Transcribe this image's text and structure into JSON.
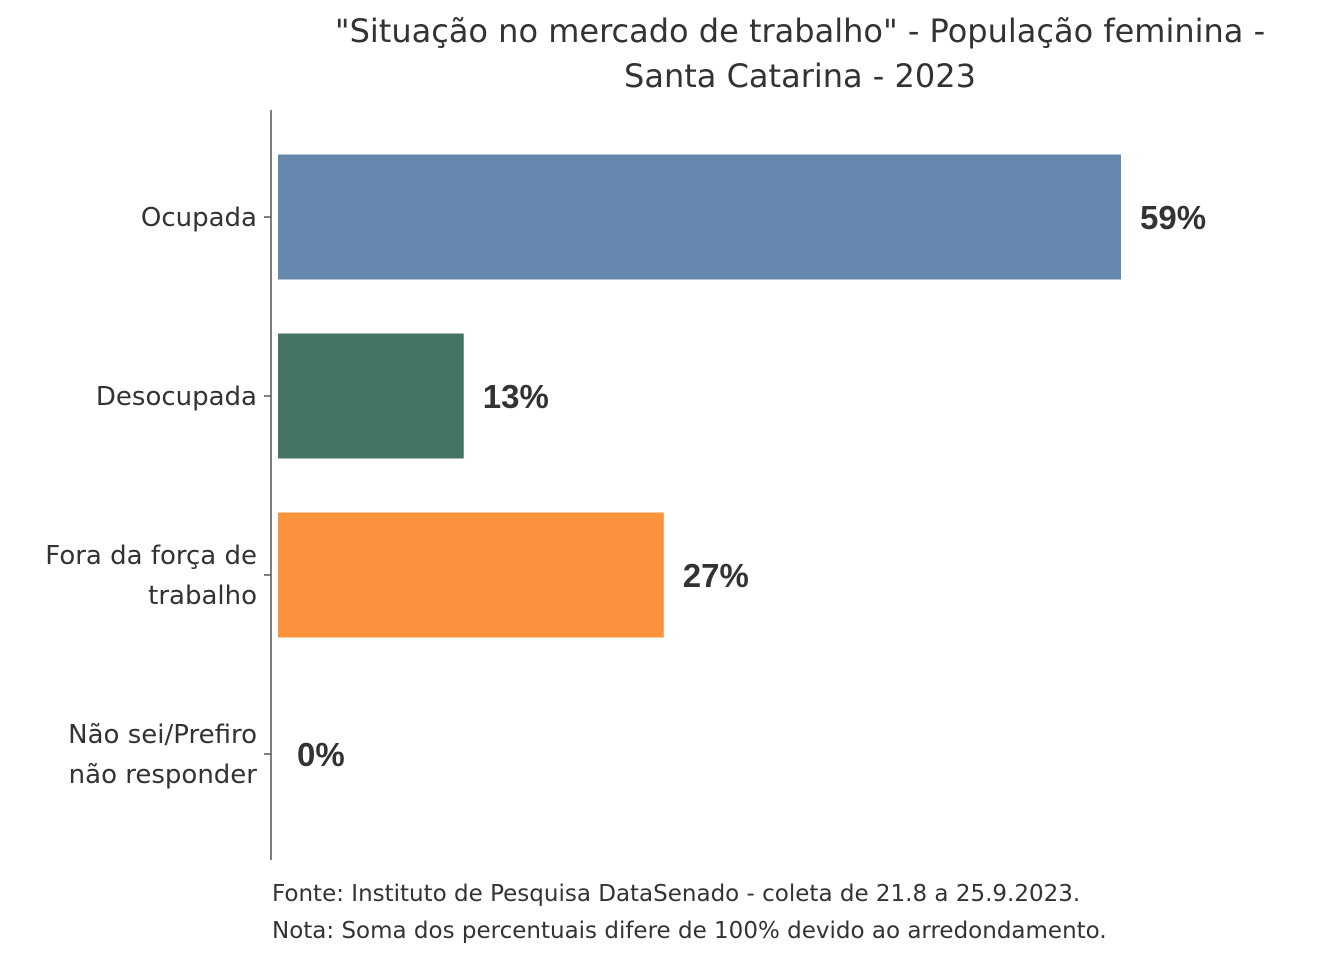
{
  "chart_data": {
    "type": "bar",
    "orientation": "horizontal",
    "title": [
      "\"Situação no mercado de trabalho\" - População feminina -",
      "Santa Catarina - 2023"
    ],
    "categories": [
      [
        "Ocupada"
      ],
      [
        "Desocupada"
      ],
      [
        "Fora da força de",
        "trabalho"
      ],
      [
        "Não sei/Prefiro",
        "não responder"
      ]
    ],
    "values": [
      59,
      13,
      27,
      0
    ],
    "value_labels": [
      "59%",
      "13%",
      "27%",
      "0%"
    ],
    "colors": [
      "#6688ae",
      "#447462",
      "#fb923e",
      "#999999"
    ],
    "xlim": [
      0,
      60
    ],
    "grid": false,
    "legend": "none",
    "caption": [
      "Fonte: Instituto de Pesquisa DataSenado - coleta de 21.8 a 25.9.2023.",
      "Nota: Soma dos percentuais difere de 100% devido ao arredondamento."
    ]
  }
}
